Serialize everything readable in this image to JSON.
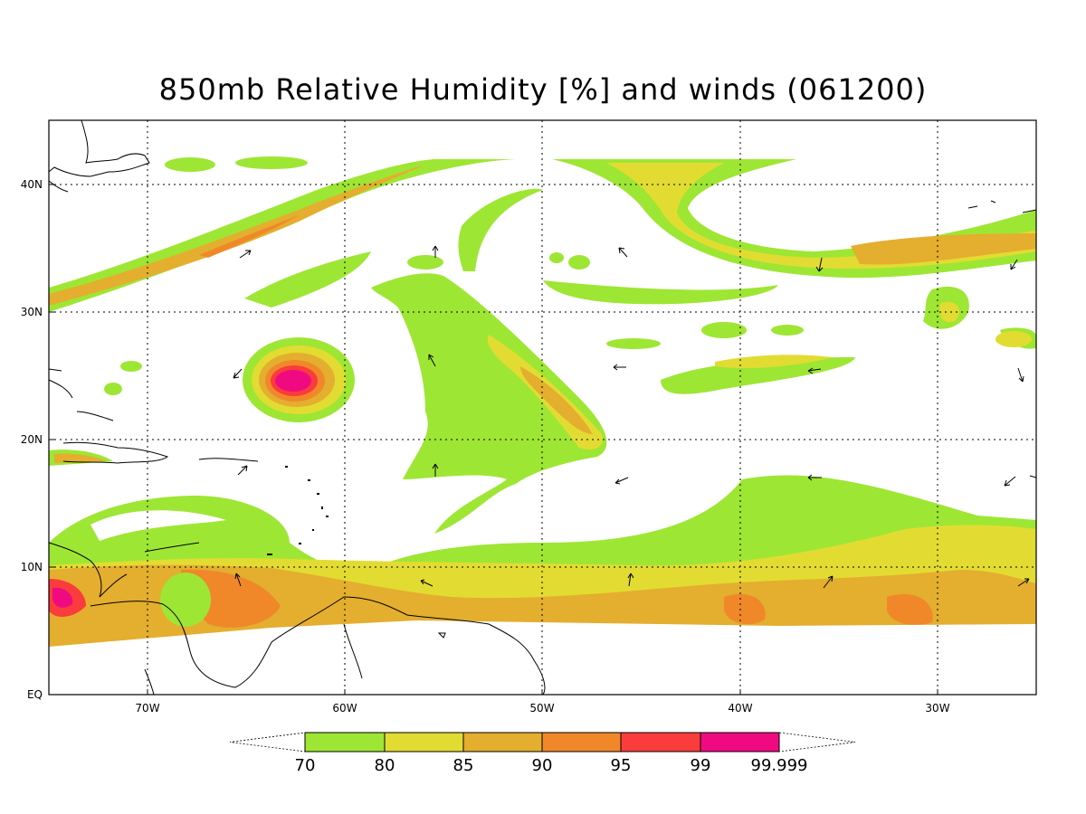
{
  "title": "850mb Relative Humidity [%] and winds (061200)",
  "map": {
    "lon_range": [
      -75,
      -25
    ],
    "lat_range": [
      0,
      44.5
    ],
    "lat_labels": [
      "EQ",
      "10N",
      "20N",
      "30N",
      "40N"
    ],
    "lon_labels": [
      "70W",
      "60W",
      "50W",
      "40W",
      "30W"
    ],
    "grid": "dotted",
    "coastlines": true,
    "wind_vectors": true
  },
  "colorbar": {
    "labels": [
      "70",
      "80",
      "85",
      "90",
      "95",
      "99",
      "99.999"
    ],
    "colors": [
      "#9ee634",
      "#e2dc32",
      "#e4ae2e",
      "#f0882a",
      "#fa3c3c",
      "#f00a82"
    ]
  }
}
